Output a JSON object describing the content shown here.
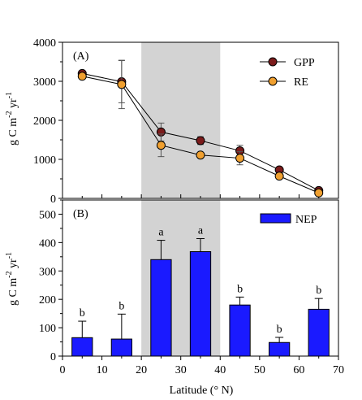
{
  "chart_data": [
    {
      "panel_label": "(A)",
      "type": "line",
      "ylabel": "g C m-2 yr-1",
      "xlim": [
        0,
        70
      ],
      "ylim": [
        0,
        4000
      ],
      "yticks": [
        "0",
        "1000",
        "2000",
        "3000",
        "4000"
      ],
      "shaded_region": [
        20,
        40
      ],
      "legend_position": "top-right",
      "x": [
        5,
        15,
        25,
        35,
        45,
        55,
        65
      ],
      "series": [
        {
          "name": "GPP",
          "color": "#7b1b1b",
          "values": [
            3200,
            2990,
            1700,
            1480,
            1220,
            730,
            200
          ],
          "errors": [
            70,
            540,
            230,
            100,
            140,
            60,
            40
          ]
        },
        {
          "name": "RE",
          "color": "#f0a030",
          "values": [
            3130,
            2920,
            1360,
            1110,
            1030,
            570,
            140
          ],
          "errors": [
            60,
            620,
            290,
            60,
            170,
            50,
            40
          ]
        }
      ]
    },
    {
      "panel_label": "(B)",
      "type": "bar",
      "ylabel": "g C m-2 yr-1",
      "xlabel": "Latitude (° N)",
      "xlim": [
        0,
        70
      ],
      "ylim": [
        0,
        550
      ],
      "xticks": [
        "0",
        "10",
        "20",
        "30",
        "40",
        "50",
        "60",
        "70"
      ],
      "yticks": [
        "0",
        "100",
        "200",
        "300",
        "400",
        "500"
      ],
      "shaded_region": [
        20,
        40
      ],
      "legend_position": "top-right",
      "x": [
        5,
        15,
        25,
        35,
        45,
        55,
        65
      ],
      "series": [
        {
          "name": "NEP",
          "color": "#1a1aff",
          "values": [
            65,
            60,
            340,
            368,
            180,
            48,
            165
          ],
          "errors": [
            58,
            88,
            68,
            46,
            28,
            18,
            38
          ],
          "letters": [
            "b",
            "b",
            "a",
            "a",
            "b",
            "b",
            "b"
          ]
        }
      ]
    }
  ]
}
